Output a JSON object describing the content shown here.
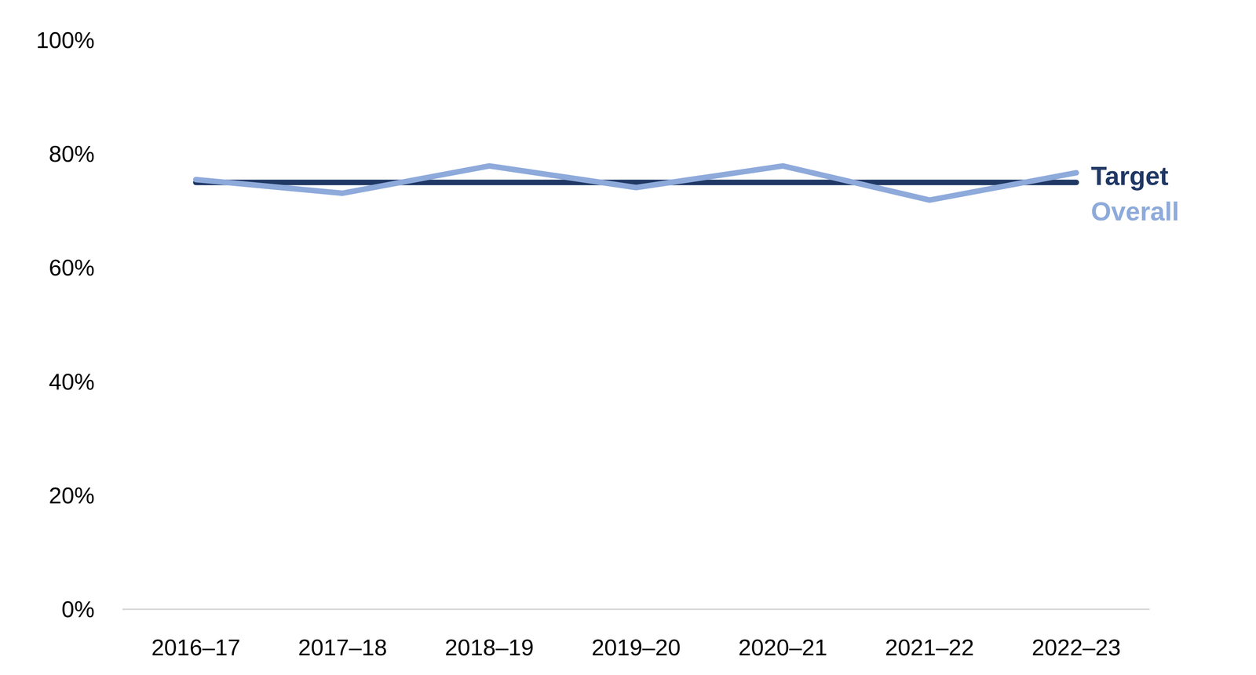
{
  "chart_data": {
    "type": "line",
    "categories": [
      "2016–17",
      "2017–18",
      "2018–19",
      "2019–20",
      "2020–21",
      "2021–22",
      "2022–23"
    ],
    "series": [
      {
        "name": "Target",
        "color": "#203864",
        "values": [
          75,
          75,
          75,
          75,
          75,
          75,
          75
        ]
      },
      {
        "name": "Overall",
        "color": "#8eaadb",
        "values": [
          75.5,
          73.1,
          77.9,
          74.1,
          77.9,
          71.9,
          76.7
        ]
      }
    ],
    "ylim": [
      0,
      100
    ],
    "yticks": [
      {
        "value": 0,
        "label": "0%"
      },
      {
        "value": 20,
        "label": "20%"
      },
      {
        "value": 40,
        "label": "40%"
      },
      {
        "value": 60,
        "label": "60%"
      },
      {
        "value": 80,
        "label": "80%"
      },
      {
        "value": 100,
        "label": "100%"
      }
    ],
    "grid": false,
    "legend": "right"
  }
}
